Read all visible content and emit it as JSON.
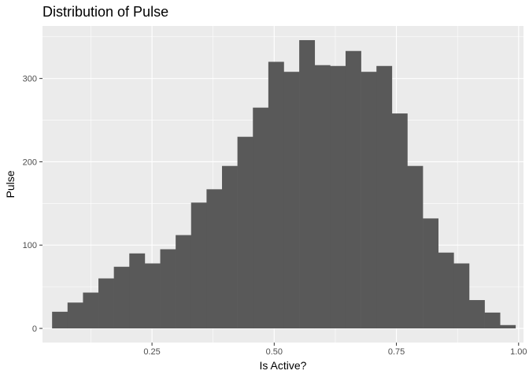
{
  "chart_data": {
    "type": "bar",
    "title": "Distribution of Pulse",
    "xlabel": "Is Active?",
    "ylabel": "Pulse",
    "xlim": [
      0.026,
      1.01
    ],
    "ylim": [
      -17,
      363
    ],
    "x_ticks": [
      0.25,
      0.5,
      0.75,
      1.0
    ],
    "x_tick_labels": [
      "0.25",
      "0.50",
      "0.75",
      "1.00"
    ],
    "y_ticks": [
      0,
      100,
      200,
      300
    ],
    "y_tick_labels": [
      "0",
      "100",
      "200",
      "300"
    ],
    "grid": true,
    "bin_edges": [
      0.0456,
      0.0772,
      0.1088,
      0.1404,
      0.172,
      0.2036,
      0.2352,
      0.2668,
      0.2984,
      0.33,
      0.3616,
      0.3932,
      0.4248,
      0.4564,
      0.488,
      0.5196,
      0.5512,
      0.5828,
      0.6144,
      0.646,
      0.6776,
      0.7092,
      0.7408,
      0.7724,
      0.804,
      0.8356,
      0.8672,
      0.8988,
      0.9304,
      0.962,
      0.9936
    ],
    "values": [
      20,
      31,
      43,
      60,
      74,
      90,
      78,
      95,
      112,
      151,
      167,
      195,
      230,
      265,
      320,
      308,
      346,
      316,
      315,
      333,
      308,
      315,
      258,
      195,
      132,
      91,
      78,
      34,
      19,
      4
    ],
    "bar_color": "#595959",
    "panel_color": "#ebebeb",
    "grid_color": "#ffffff"
  }
}
